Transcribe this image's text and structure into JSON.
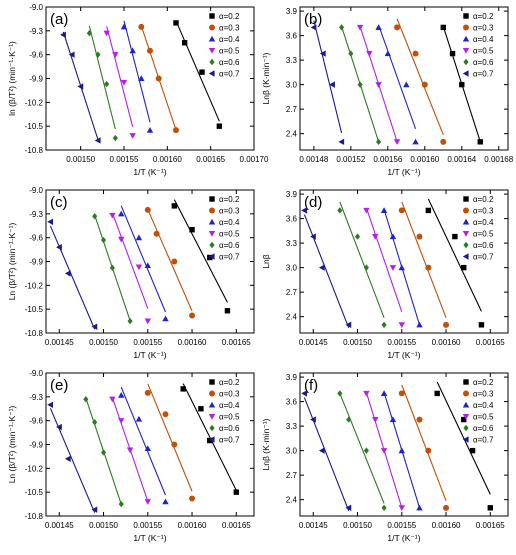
{
  "colors": {
    "0.2": "#000000",
    "0.3": "#c0500a",
    "0.4": "#1f24c8",
    "0.5": "#b420e8",
    "0.6": "#2a7d1e",
    "0.7": "#1a1a8c"
  },
  "chart_data": [
    {
      "type": "scatter",
      "panel_label": "(a)",
      "xlabel": "1/T (K⁻¹)",
      "ylabel": "ln (β/T²) (min⁻¹·K⁻¹)",
      "xlim": [
        0.00146,
        0.0017
      ],
      "ylim": [
        -10.8,
        -9.0
      ],
      "xticks": [
        "0.00150",
        "0.00155",
        "0.00160",
        "0.00165",
        "0.00170"
      ],
      "xtick_values": [
        0.0015,
        0.00155,
        0.0016,
        0.00165,
        0.0017
      ],
      "yticks": [
        "-9.0",
        "-9.3",
        "-9.6",
        "-9.9",
        "-10.2",
        "-10.5",
        "-10.8"
      ],
      "ytick_values": [
        -9.0,
        -9.3,
        -9.6,
        -9.9,
        -10.2,
        -10.5,
        -10.8
      ],
      "legend_position": "top-right",
      "series": [
        {
          "name": "α=0.2",
          "marker": "square",
          "x": [
            0.00161,
            0.00162,
            0.00164,
            0.00166
          ],
          "y": [
            -9.2,
            -9.45,
            -9.82,
            -10.5
          ]
        },
        {
          "name": "α=0.3",
          "marker": "circle",
          "x": [
            0.00157,
            0.00158,
            0.00159,
            0.00161
          ],
          "y": [
            -9.25,
            -9.55,
            -9.9,
            -10.55
          ]
        },
        {
          "name": "α=0.4",
          "marker": "triangle-up",
          "x": [
            0.00155,
            0.00156,
            0.00157,
            0.00158
          ],
          "y": [
            -9.25,
            -9.55,
            -9.9,
            -10.55
          ]
        },
        {
          "name": "α=0.5",
          "marker": "triangle-down",
          "x": [
            0.00153,
            0.00154,
            0.00155,
            0.00156
          ],
          "y": [
            -9.33,
            -9.6,
            -9.95,
            -10.62
          ]
        },
        {
          "name": "α=0.6",
          "marker": "diamond",
          "x": [
            0.00151,
            0.00152,
            0.00153,
            0.00154
          ],
          "y": [
            -9.33,
            -9.6,
            -9.97,
            -10.65
          ]
        },
        {
          "name": "α=0.7",
          "marker": "triangle-left",
          "x": [
            0.00148,
            0.00149,
            0.0015,
            0.00152
          ],
          "y": [
            -9.35,
            -9.6,
            -10.0,
            -10.68
          ]
        }
      ]
    },
    {
      "type": "scatter",
      "panel_label": "(b)",
      "xlabel": "1/T (K⁻¹)",
      "ylabel": "Lnβ (K·min⁻¹)",
      "xlim": [
        0.001465,
        0.00169
      ],
      "ylim": [
        2.2,
        3.95
      ],
      "xticks": [
        "0.00148",
        "0.00152",
        "0.00156",
        "0.00160",
        "0.00164",
        "0.00168"
      ],
      "xtick_values": [
        0.00148,
        0.00152,
        0.00156,
        0.0016,
        0.00164,
        0.00168
      ],
      "yticks": [
        "2.4",
        "2.7",
        "3.0",
        "3.3",
        "3.6",
        "3.9"
      ],
      "ytick_values": [
        2.4,
        2.7,
        3.0,
        3.3,
        3.6,
        3.9
      ],
      "legend_position": "top-right",
      "series": [
        {
          "name": "α=0.2",
          "marker": "square",
          "x": [
            0.00162,
            0.00163,
            0.00164,
            0.00166
          ],
          "y": [
            3.7,
            3.38,
            3.0,
            2.3
          ]
        },
        {
          "name": "α=0.3",
          "marker": "circle",
          "x": [
            0.00157,
            0.00159,
            0.0016,
            0.00162
          ],
          "y": [
            3.7,
            3.38,
            3.0,
            2.3
          ]
        },
        {
          "name": "α=0.4",
          "marker": "triangle-up",
          "x": [
            0.00155,
            0.00156,
            0.00158,
            0.00159
          ],
          "y": [
            3.7,
            3.38,
            3.0,
            2.3
          ]
        },
        {
          "name": "α=0.5",
          "marker": "triangle-down",
          "x": [
            0.00153,
            0.00154,
            0.00155,
            0.00157
          ],
          "y": [
            3.7,
            3.38,
            3.0,
            2.3
          ]
        },
        {
          "name": "α=0.6",
          "marker": "diamond",
          "x": [
            0.00151,
            0.00152,
            0.00153,
            0.00155
          ],
          "y": [
            3.7,
            3.38,
            3.0,
            2.3
          ]
        },
        {
          "name": "α=0.7",
          "marker": "triangle-left",
          "x": [
            0.00148,
            0.00149,
            0.0015,
            0.00151
          ],
          "y": [
            3.7,
            3.38,
            3.0,
            2.3
          ]
        }
      ]
    },
    {
      "type": "scatter",
      "panel_label": "(c)",
      "xlabel": "1/T (K⁻¹)",
      "ylabel": "Ln (β/T²) (min⁻¹·K⁻¹)",
      "xlim": [
        0.001435,
        0.00167
      ],
      "ylim": [
        -10.8,
        -9.0
      ],
      "xticks": [
        "0.00145",
        "0.00150",
        "0.00155",
        "0.00160",
        "0.00165"
      ],
      "xtick_values": [
        0.00145,
        0.0015,
        0.00155,
        0.0016,
        0.00165
      ],
      "yticks": [
        "-9.0",
        "-9.3",
        "-9.6",
        "-9.9",
        "-10.2",
        "-10.5",
        "-10.8"
      ],
      "ytick_values": [
        -9.0,
        -9.3,
        -9.6,
        -9.9,
        -10.2,
        -10.5,
        -10.8
      ],
      "legend_position": "top-right",
      "series": [
        {
          "name": "α=0.2",
          "marker": "square",
          "x": [
            0.00158,
            0.0016,
            0.00162,
            0.00164
          ],
          "y": [
            -9.2,
            -9.5,
            -9.85,
            -10.52
          ]
        },
        {
          "name": "α=0.3",
          "marker": "circle",
          "x": [
            0.00155,
            0.00156,
            0.00158,
            0.0016
          ],
          "y": [
            -9.25,
            -9.55,
            -9.9,
            -10.58
          ]
        },
        {
          "name": "α=0.4",
          "marker": "triangle-up",
          "x": [
            0.00152,
            0.00154,
            0.00155,
            0.00157
          ],
          "y": [
            -9.3,
            -9.6,
            -9.95,
            -10.62
          ]
        },
        {
          "name": "α=0.5",
          "marker": "triangle-down",
          "x": [
            0.00151,
            0.00152,
            0.00154,
            0.00155
          ],
          "y": [
            -9.32,
            -9.62,
            -9.97,
            -10.65
          ]
        },
        {
          "name": "α=0.6",
          "marker": "diamond",
          "x": [
            0.00149,
            0.0015,
            0.00151,
            0.00153
          ],
          "y": [
            -9.33,
            -9.63,
            -9.98,
            -10.65
          ]
        },
        {
          "name": "α=0.7",
          "marker": "triangle-left",
          "x": [
            0.00144,
            0.00145,
            0.00146,
            0.00149
          ],
          "y": [
            -9.4,
            -9.72,
            -10.05,
            -10.72
          ]
        }
      ]
    },
    {
      "type": "scatter",
      "panel_label": "(d)",
      "xlabel": "1/T (K⁻¹)",
      "ylabel": "Lnβ",
      "xlim": [
        0.001435,
        0.00167
      ],
      "ylim": [
        2.2,
        3.95
      ],
      "xticks": [
        "0.00145",
        "0.00150",
        "0.00155",
        "0.00160",
        "0.00165"
      ],
      "xtick_values": [
        0.00145,
        0.0015,
        0.00155,
        0.0016,
        0.00165
      ],
      "yticks": [
        "2.4",
        "2.7",
        "3.0",
        "3.3",
        "3.6",
        "3.9"
      ],
      "ytick_values": [
        2.4,
        2.7,
        3.0,
        3.3,
        3.6,
        3.9
      ],
      "legend_position": "top-right",
      "series": [
        {
          "name": "α=0.2",
          "marker": "square",
          "x": [
            0.00158,
            0.00161,
            0.00162,
            0.00164
          ],
          "y": [
            3.7,
            3.38,
            3.0,
            2.3
          ]
        },
        {
          "name": "α=0.3",
          "marker": "circle",
          "x": [
            0.00155,
            0.00157,
            0.00158,
            0.0016
          ],
          "y": [
            3.7,
            3.38,
            3.0,
            2.3
          ]
        },
        {
          "name": "α=0.4",
          "marker": "triangle-up",
          "x": [
            0.00153,
            0.00154,
            0.00155,
            0.00157
          ],
          "y": [
            3.7,
            3.38,
            3.0,
            2.3
          ]
        },
        {
          "name": "α=0.5",
          "marker": "triangle-down",
          "x": [
            0.00151,
            0.00152,
            0.00154,
            0.00155
          ],
          "y": [
            3.7,
            3.38,
            3.0,
            2.3
          ]
        },
        {
          "name": "α=0.6",
          "marker": "diamond",
          "x": [
            0.00148,
            0.0015,
            0.00151,
            0.00153
          ],
          "y": [
            3.7,
            3.38,
            3.0,
            2.3
          ]
        },
        {
          "name": "α=0.7",
          "marker": "triangle-left",
          "x": [
            0.00144,
            0.00145,
            0.00146,
            0.00149
          ],
          "y": [
            3.7,
            3.38,
            3.0,
            2.3
          ]
        }
      ]
    },
    {
      "type": "scatter",
      "panel_label": "(e)",
      "xlabel": "1/T (K⁻¹)",
      "ylabel": "Ln (β/T²) (min⁻¹·K⁻¹)",
      "xlim": [
        0.001435,
        0.00167
      ],
      "ylim": [
        -10.8,
        -9.0
      ],
      "xticks": [
        "0.00145",
        "0.00150",
        "0.00155",
        "0.00160",
        "0.00165"
      ],
      "xtick_values": [
        0.00145,
        0.0015,
        0.00155,
        0.0016,
        0.00165
      ],
      "yticks": [
        "-9.0",
        "-9.3",
        "-9.6",
        "-9.9",
        "-10.2",
        "-10.5",
        "-10.8"
      ],
      "ytick_values": [
        -9.0,
        -9.3,
        -9.6,
        -9.9,
        -10.2,
        -10.5,
        -10.8
      ],
      "legend_position": "top-right",
      "series": [
        {
          "name": "α=0.2",
          "marker": "square",
          "x": [
            0.00159,
            0.00161,
            0.00162,
            0.00165
          ],
          "y": [
            -9.2,
            -9.45,
            -9.85,
            -10.5
          ]
        },
        {
          "name": "α=0.3",
          "marker": "circle",
          "x": [
            0.00155,
            0.00157,
            0.00158,
            0.0016
          ],
          "y": [
            -9.25,
            -9.52,
            -9.9,
            -10.58
          ]
        },
        {
          "name": "α=0.4",
          "marker": "triangle-up",
          "x": [
            0.00152,
            0.00154,
            0.00155,
            0.00157
          ],
          "y": [
            -9.28,
            -9.58,
            -9.95,
            -10.62
          ]
        },
        {
          "name": "α=0.5",
          "marker": "triangle-down",
          "x": [
            0.00151,
            0.00152,
            0.00153,
            0.00155
          ],
          "y": [
            -9.33,
            -9.6,
            -9.97,
            -10.62
          ]
        },
        {
          "name": "α=0.6",
          "marker": "diamond",
          "x": [
            0.00148,
            0.00149,
            0.0015,
            0.00152
          ],
          "y": [
            -9.33,
            -9.62,
            -10.0,
            -10.65
          ]
        },
        {
          "name": "α=0.7",
          "marker": "triangle-left",
          "x": [
            0.00144,
            0.00145,
            0.00146,
            0.00149
          ],
          "y": [
            -9.4,
            -9.68,
            -10.08,
            -10.72
          ]
        }
      ]
    },
    {
      "type": "scatter",
      "panel_label": "(f)",
      "xlabel": "1/T (K⁻¹)",
      "ylabel": "Lnβ (K·min⁻¹)",
      "xlim": [
        0.001435,
        0.00167
      ],
      "ylim": [
        2.2,
        3.95
      ],
      "xticks": [
        "0.00145",
        "0.00150",
        "0.00155",
        "0.00160",
        "0.00165"
      ],
      "xtick_values": [
        0.00145,
        0.0015,
        0.00155,
        0.0016,
        0.00165
      ],
      "yticks": [
        "2.4",
        "2.7",
        "3.0",
        "3.3",
        "3.6",
        "3.9"
      ],
      "ytick_values": [
        2.4,
        2.7,
        3.0,
        3.3,
        3.6,
        3.9
      ],
      "legend_position": "top-right",
      "series": [
        {
          "name": "α=0.2",
          "marker": "square",
          "x": [
            0.00159,
            0.00162,
            0.00163,
            0.00165
          ],
          "y": [
            3.7,
            3.38,
            3.0,
            2.3
          ]
        },
        {
          "name": "α=0.3",
          "marker": "circle",
          "x": [
            0.00155,
            0.00157,
            0.00158,
            0.0016
          ],
          "y": [
            3.7,
            3.38,
            3.0,
            2.3
          ]
        },
        {
          "name": "α=0.4",
          "marker": "triangle-up",
          "x": [
            0.00153,
            0.00154,
            0.00155,
            0.00157
          ],
          "y": [
            3.7,
            3.38,
            3.0,
            2.3
          ]
        },
        {
          "name": "α=0.5",
          "marker": "triangle-down",
          "x": [
            0.00151,
            0.00152,
            0.00153,
            0.00155
          ],
          "y": [
            3.7,
            3.38,
            3.0,
            2.3
          ]
        },
        {
          "name": "α=0.6",
          "marker": "diamond",
          "x": [
            0.00148,
            0.00149,
            0.00151,
            0.00153
          ],
          "y": [
            3.7,
            3.38,
            3.0,
            2.3
          ]
        },
        {
          "name": "α=0.7",
          "marker": "triangle-left",
          "x": [
            0.00144,
            0.00145,
            0.00146,
            0.00149
          ],
          "y": [
            3.7,
            3.38,
            3.0,
            2.3
          ]
        }
      ]
    }
  ]
}
